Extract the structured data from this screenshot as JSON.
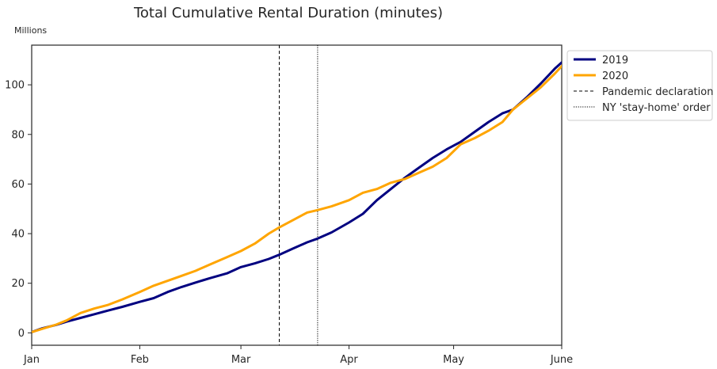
{
  "chart_data": {
    "type": "line",
    "title": "Total Cumulative Rental Duration (minutes)",
    "y_unit_label": "Millions",
    "xlabel": "",
    "ylabel": "",
    "x_ticks": [
      "Jan",
      "Feb",
      "Mar",
      "Apr",
      "May",
      "June"
    ],
    "x_tick_days": [
      0,
      31,
      60,
      91,
      121,
      152
    ],
    "x_range_days": [
      0,
      152
    ],
    "y_ticks": [
      0,
      20,
      40,
      60,
      80,
      100
    ],
    "ylim": [
      -5,
      116
    ],
    "grid": false,
    "legend_position": "outside-top-right",
    "series": [
      {
        "name": "2019",
        "color": "#000080",
        "line_style": "solid",
        "points": [
          [
            0,
            0.3
          ],
          [
            3,
            1.8
          ],
          [
            7,
            3.2
          ],
          [
            10,
            4.5
          ],
          [
            14,
            6.0
          ],
          [
            18,
            7.5
          ],
          [
            22,
            9.0
          ],
          [
            26,
            10.5
          ],
          [
            31,
            12.5
          ],
          [
            35,
            14.0
          ],
          [
            39,
            16.5
          ],
          [
            43,
            18.5
          ],
          [
            47,
            20.3
          ],
          [
            51,
            22.0
          ],
          [
            56,
            24.0
          ],
          [
            60,
            26.5
          ],
          [
            64,
            28.0
          ],
          [
            68,
            29.8
          ],
          [
            71,
            31.5
          ],
          [
            75,
            34.0
          ],
          [
            79,
            36.5
          ],
          [
            82,
            38.0
          ],
          [
            86,
            40.5
          ],
          [
            91,
            44.5
          ],
          [
            95,
            48.0
          ],
          [
            99,
            53.5
          ],
          [
            103,
            58.0
          ],
          [
            107,
            62.5
          ],
          [
            111,
            66.5
          ],
          [
            115,
            70.5
          ],
          [
            119,
            74.0
          ],
          [
            123,
            77.0
          ],
          [
            127,
            81.0
          ],
          [
            131,
            85.0
          ],
          [
            135,
            88.5
          ],
          [
            138,
            90.0
          ],
          [
            142,
            95.0
          ],
          [
            146,
            100.5
          ],
          [
            150,
            106.5
          ],
          [
            152,
            109.0
          ],
          [
            154,
            111.0
          ]
        ]
      },
      {
        "name": "2020",
        "color": "#FFA500",
        "line_style": "solid",
        "points": [
          [
            0,
            0.3
          ],
          [
            3,
            1.6
          ],
          [
            7,
            3.3
          ],
          [
            10,
            5.0
          ],
          [
            14,
            8.0
          ],
          [
            18,
            9.8
          ],
          [
            22,
            11.3
          ],
          [
            26,
            13.5
          ],
          [
            31,
            16.5
          ],
          [
            35,
            19.0
          ],
          [
            39,
            21.0
          ],
          [
            43,
            23.0
          ],
          [
            47,
            25.0
          ],
          [
            51,
            27.5
          ],
          [
            56,
            30.5
          ],
          [
            60,
            33.0
          ],
          [
            64,
            36.0
          ],
          [
            68,
            40.0
          ],
          [
            71,
            42.5
          ],
          [
            75,
            45.5
          ],
          [
            79,
            48.5
          ],
          [
            82,
            49.5
          ],
          [
            86,
            51.0
          ],
          [
            91,
            53.5
          ],
          [
            95,
            56.5
          ],
          [
            99,
            58.0
          ],
          [
            103,
            60.5
          ],
          [
            107,
            62.0
          ],
          [
            111,
            64.5
          ],
          [
            115,
            67.0
          ],
          [
            119,
            70.5
          ],
          [
            123,
            76.0
          ],
          [
            127,
            78.5
          ],
          [
            131,
            81.5
          ],
          [
            135,
            85.0
          ],
          [
            138,
            90.0
          ],
          [
            142,
            94.5
          ],
          [
            146,
            99.0
          ],
          [
            150,
            104.5
          ],
          [
            152,
            107.5
          ],
          [
            154,
            111.0
          ]
        ]
      }
    ],
    "reference_lines": [
      {
        "name": "Pandemic declaration",
        "x_day": 71,
        "line_style": "dashed"
      },
      {
        "name": "NY 'stay-home' order",
        "x_day": 82,
        "line_style": "dotted"
      }
    ]
  }
}
